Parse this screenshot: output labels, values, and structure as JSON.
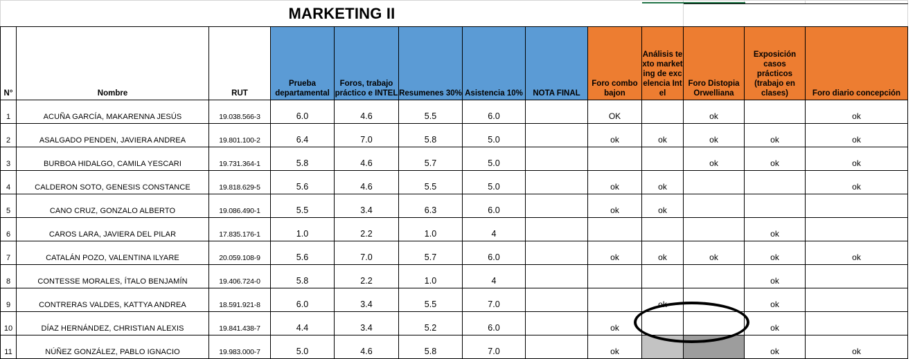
{
  "title": "MARKETING II",
  "headers": {
    "n": "N°",
    "nombre": "Nombre",
    "rut": "RUT",
    "prueba": "Prueba departamental",
    "foros": "Foros, trabajo práctico e INTEL",
    "resumenes": "Resumenes 30%",
    "asistencia": "Asistencia 10%",
    "nota_final": "NOTA FINAL",
    "foro_combo": "Foro combo bajon",
    "analisis": "Análisis texto marketing de excelencia Intel",
    "foro_distopia": "Foro Distopia Orwelliana",
    "exposicion": "Exposición casos prácticos (trabajo en clases)",
    "foro_diario": "Foro diario concepción"
  },
  "rows": [
    {
      "n": "1",
      "nombre": "ACUÑA GARCÍA, MAKARENNA JESÚS",
      "rut": "19.038.566-3",
      "prueba": "6.0",
      "foros": "4.6",
      "resumenes": "5.5",
      "asistencia": "6.0",
      "nota_final": "",
      "foro_combo": "OK",
      "analisis": "",
      "foro_distopia": "ok",
      "exposicion": "",
      "foro_diario": "ok"
    },
    {
      "n": "2",
      "nombre": "ASALGADO PENDEN, JAVIERA ANDREA",
      "rut": "19.801.100-2",
      "prueba": "6.4",
      "foros": "7.0",
      "resumenes": "5.8",
      "asistencia": "5.0",
      "nota_final": "",
      "foro_combo": "ok",
      "analisis": "ok",
      "foro_distopia": "ok",
      "exposicion": "ok",
      "foro_diario": "ok"
    },
    {
      "n": "3",
      "nombre": "BURBOA HIDALGO, CAMILA YESCARI",
      "rut": "19.731.364-1",
      "prueba": "5.8",
      "foros": "4.6",
      "resumenes": "5.7",
      "asistencia": "5.0",
      "nota_final": "",
      "foro_combo": "",
      "analisis": "",
      "foro_distopia": "ok",
      "exposicion": "ok",
      "foro_diario": "ok"
    },
    {
      "n": "4",
      "nombre": "CALDERON SOTO, GENESIS CONSTANCE",
      "rut": "19.818.629-5",
      "prueba": "5.6",
      "foros": "4.6",
      "resumenes": "5.5",
      "asistencia": "5.0",
      "nota_final": "",
      "foro_combo": "ok",
      "analisis": "ok",
      "foro_distopia": "",
      "exposicion": "",
      "foro_diario": "ok"
    },
    {
      "n": "5",
      "nombre": "CANO CRUZ, GONZALO ALBERTO",
      "rut": "19.086.490-1",
      "prueba": "5.5",
      "foros": "3.4",
      "resumenes": "6.3",
      "asistencia": "6.0",
      "nota_final": "",
      "foro_combo": "ok",
      "analisis": "ok",
      "foro_distopia": "",
      "exposicion": "",
      "foro_diario": ""
    },
    {
      "n": "6",
      "nombre": "CAROS LARA, JAVIERA DEL PILAR",
      "rut": "17.835.176-1",
      "prueba": "1.0",
      "foros": "2.2",
      "resumenes": "1.0",
      "asistencia": "4",
      "nota_final": "",
      "foro_combo": "",
      "analisis": "",
      "foro_distopia": "",
      "exposicion": "ok",
      "foro_diario": ""
    },
    {
      "n": "7",
      "nombre": "CATALÁN POZO, VALENTINA ILYARE",
      "rut": "20.059.108-9",
      "prueba": "5.6",
      "foros": "7.0",
      "resumenes": "5.7",
      "asistencia": "6.0",
      "nota_final": "",
      "foro_combo": "ok",
      "analisis": "ok",
      "foro_distopia": "ok",
      "exposicion": "ok",
      "foro_diario": "ok"
    },
    {
      "n": "8",
      "nombre": "CONTESSE MORALES, ÍTALO BENJAMÍN",
      "rut": "19.406.724-0",
      "prueba": "5.8",
      "foros": "2.2",
      "resumenes": "1.0",
      "asistencia": "4",
      "nota_final": "",
      "foro_combo": "",
      "analisis": "",
      "foro_distopia": "",
      "exposicion": "ok",
      "foro_diario": ""
    },
    {
      "n": "9",
      "nombre": "CONTRERAS VALDES, KATTYA ANDREA",
      "rut": "18.591.921-8",
      "prueba": "6.0",
      "foros": "3.4",
      "resumenes": "5.5",
      "asistencia": "7.0",
      "nota_final": "",
      "foro_combo": "",
      "analisis": "ok",
      "foro_distopia": "",
      "exposicion": "ok",
      "foro_diario": ""
    },
    {
      "n": "10",
      "nombre": "DÍAZ HERNÁNDEZ, CHRISTIAN ALEXIS",
      "rut": "19.841.438-7",
      "prueba": "4.4",
      "foros": "3.4",
      "resumenes": "5.2",
      "asistencia": "6.0",
      "nota_final": "",
      "foro_combo": "ok",
      "analisis": "",
      "foro_distopia": "",
      "exposicion": "ok",
      "foro_diario": ""
    },
    {
      "n": "11",
      "nombre": "NÚÑEZ GONZÁLEZ, PABLO IGNACIO",
      "rut": "19.983.000-7",
      "prueba": "5.0",
      "foros": "4.6",
      "resumenes": "5.8",
      "asistencia": "7.0",
      "nota_final": "",
      "foro_combo": "ok",
      "analisis": "",
      "foro_distopia": "",
      "exposicion": "ok",
      "foro_diario": "ok"
    }
  ],
  "colors": {
    "header_blue": "#5b9bd5",
    "header_orange": "#ed7d31",
    "highlight_light": "#c3c3c3",
    "highlight_dark": "#9d9d9d",
    "selection_green": "#217346"
  }
}
